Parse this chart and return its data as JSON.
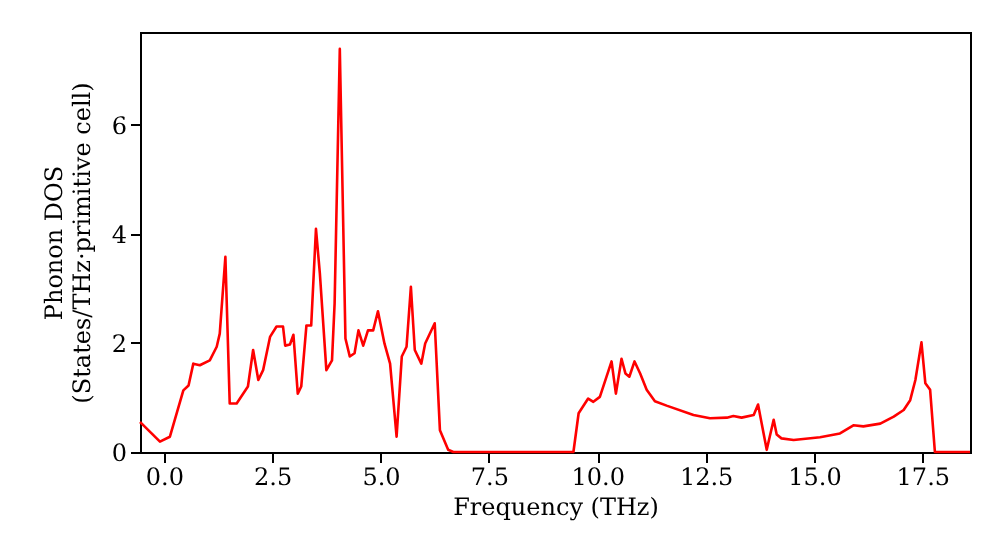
{
  "chart_data": {
    "type": "line",
    "xlabel": "Frequency (THz)",
    "ylabel": "Phonon DOS\n(States/THz·primitive cell)",
    "x": [
      -0.55,
      -0.51,
      -0.09,
      0.14,
      0.45,
      0.57,
      0.68,
      0.83,
      1.06,
      1.22,
      1.29,
      1.42,
      1.52,
      1.68,
      1.94,
      2.06,
      2.18,
      2.29,
      2.45,
      2.6,
      2.75,
      2.8,
      2.91,
      2.99,
      3.09,
      3.17,
      3.29,
      3.4,
      3.51,
      3.6,
      3.75,
      3.88,
      3.94,
      4.06,
      4.19,
      4.29,
      4.4,
      4.49,
      4.6,
      4.71,
      4.83,
      4.94,
      5.09,
      5.22,
      5.37,
      5.49,
      5.6,
      5.7,
      5.79,
      5.94,
      6.03,
      6.25,
      6.37,
      6.56,
      6.68,
      9.45,
      9.57,
      9.79,
      9.91,
      10.06,
      10.33,
      10.43,
      10.56,
      10.65,
      10.74,
      10.86,
      10.99,
      11.14,
      11.33,
      11.6,
      12.22,
      12.6,
      12.99,
      13.14,
      13.33,
      13.61,
      13.71,
      13.91,
      14.07,
      14.14,
      14.25,
      14.53,
      15.14,
      15.6,
      15.91,
      16.14,
      16.53,
      16.84,
      17.07,
      17.22,
      17.34,
      17.48,
      17.57,
      17.68,
      17.79,
      18.6
    ],
    "series": [
      {
        "color": "#ff0000",
        "values": [
          0.55,
          0.52,
          0.19,
          0.28,
          1.13,
          1.22,
          1.62,
          1.59,
          1.68,
          1.93,
          2.17,
          3.58,
          0.89,
          0.89,
          1.2,
          1.87,
          1.32,
          1.5,
          2.11,
          2.3,
          2.3,
          1.95,
          1.97,
          2.15,
          1.07,
          1.2,
          2.32,
          2.32,
          4.09,
          3.27,
          1.5,
          1.68,
          2.72,
          7.39,
          2.08,
          1.75,
          1.81,
          2.23,
          1.95,
          2.23,
          2.23,
          2.58,
          1.99,
          1.62,
          0.28,
          1.75,
          1.93,
          3.03,
          1.87,
          1.62,
          1.99,
          2.36,
          0.4,
          0.04,
          0,
          0,
          0.71,
          0.98,
          0.92,
          1.01,
          1.66,
          1.07,
          1.71,
          1.44,
          1.38,
          1.66,
          1.44,
          1.14,
          0.93,
          0.85,
          0.68,
          0.62,
          0.63,
          0.66,
          0.63,
          0.68,
          0.87,
          0.04,
          0.59,
          0.32,
          0.25,
          0.22,
          0.27,
          0.34,
          0.49,
          0.47,
          0.52,
          0.65,
          0.77,
          0.95,
          1.32,
          2.01,
          1.26,
          1.14,
          0,
          0
        ]
      }
    ],
    "xlim": [
      -0.55,
      18.6
    ],
    "ylim": [
      0,
      7.7
    ],
    "xticks": [
      {
        "value": 0,
        "label": "0.0"
      },
      {
        "value": 2.5,
        "label": "2.5"
      },
      {
        "value": 5,
        "label": "5.0"
      },
      {
        "value": 7.5,
        "label": "7.5"
      },
      {
        "value": 10,
        "label": "10.0"
      },
      {
        "value": 12.5,
        "label": "12.5"
      },
      {
        "value": 15,
        "label": "15.0"
      },
      {
        "value": 17.5,
        "label": "17.5"
      }
    ],
    "yticks": [
      0,
      2,
      4,
      6
    ]
  }
}
